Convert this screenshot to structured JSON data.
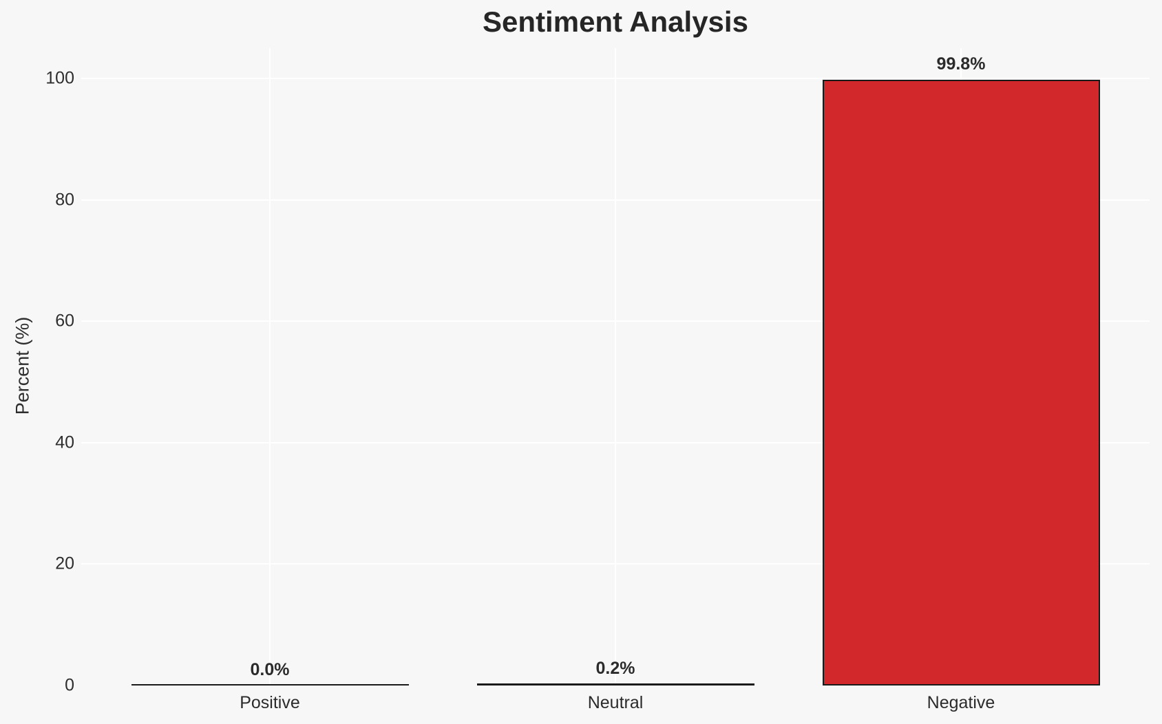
{
  "chart_data": {
    "type": "bar",
    "title": "Sentiment Analysis",
    "xlabel": "",
    "ylabel": "Percent (%)",
    "categories": [
      "Positive",
      "Neutral",
      "Negative"
    ],
    "values": [
      0.0,
      0.2,
      99.8
    ],
    "value_labels": [
      "0.0%",
      "0.2%",
      "99.8%"
    ],
    "yticks": [
      0,
      20,
      40,
      60,
      80,
      100
    ],
    "ylim": [
      0,
      105
    ],
    "grid": "on",
    "legend": "none",
    "colors": {
      "bar_fill": "#d2282b",
      "bar_edge": "#1a1a1a",
      "background": "#f7f7f8",
      "gridline": "#ffffff",
      "title_text": "#262626",
      "tick_text": "#2e2e2e"
    }
  }
}
